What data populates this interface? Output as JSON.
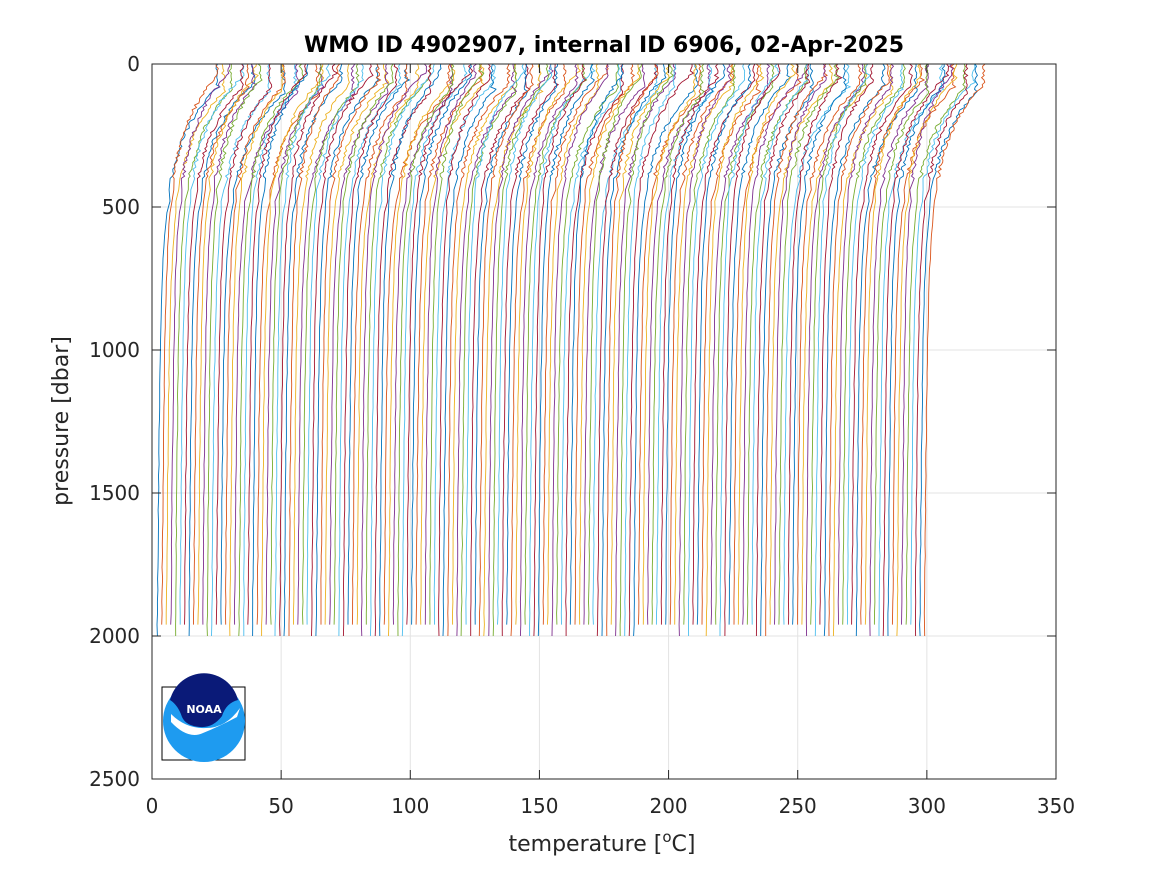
{
  "chart_data": {
    "type": "line",
    "title": "WMO ID 4902907, internal ID 6906, 02-Apr-2025",
    "xlabel_text": "temperature [",
    "xlabel_sup": "o",
    "xlabel_unit": "C]",
    "ylabel": "pressure [dbar]",
    "xlim": [
      0,
      350
    ],
    "ylim": [
      0,
      2500
    ],
    "y_reversed": true,
    "grid": true,
    "x_ticks": [
      0,
      50,
      100,
      150,
      200,
      250,
      300,
      350
    ],
    "y_ticks": [
      0,
      500,
      1000,
      1500,
      2000,
      2500
    ],
    "series_description": "Stacked temperature profiles, each offset successively along the temperature axis",
    "profile_count": 170,
    "profile_offset_range": [
      3,
      300
    ],
    "profile_surface_excess": [
      18,
      24
    ],
    "profile_max_pressure": 2000,
    "series_colors": [
      "#0072BD",
      "#D95319",
      "#EDB120",
      "#7E2F8E",
      "#77AC30",
      "#4DBEEE",
      "#A2142F"
    ]
  },
  "logo": {
    "name": "NOAA",
    "text": "NOAA"
  }
}
